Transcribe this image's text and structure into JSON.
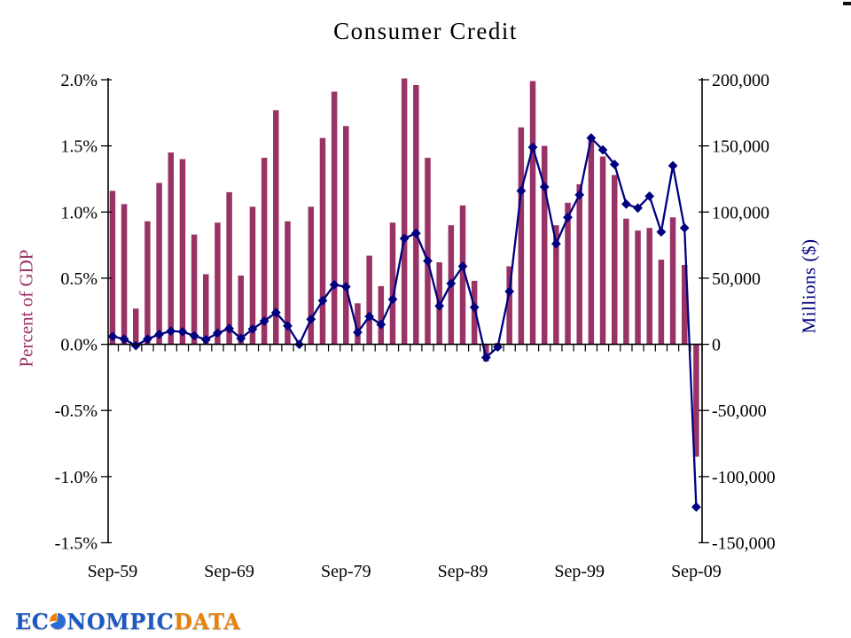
{
  "chart_data": {
    "type": "bar+line",
    "title": "Consumer Credit",
    "grid": false,
    "legend": false,
    "x_axis": {
      "tick_labels": [
        "Sep-59",
        "Sep-69",
        "Sep-79",
        "Sep-89",
        "Sep-99",
        "Sep-09"
      ]
    },
    "categories": [
      "Sep-59",
      "Sep-60",
      "Sep-61",
      "Sep-62",
      "Sep-63",
      "Sep-64",
      "Sep-65",
      "Sep-66",
      "Sep-67",
      "Sep-68",
      "Sep-69",
      "Sep-70",
      "Sep-71",
      "Sep-72",
      "Sep-73",
      "Sep-74",
      "Sep-75",
      "Sep-76",
      "Sep-77",
      "Sep-78",
      "Sep-79",
      "Sep-80",
      "Sep-81",
      "Sep-82",
      "Sep-83",
      "Sep-84",
      "Sep-85",
      "Sep-86",
      "Sep-87",
      "Sep-88",
      "Sep-89",
      "Sep-90",
      "Sep-91",
      "Sep-92",
      "Sep-93",
      "Sep-94",
      "Sep-95",
      "Sep-96",
      "Sep-97",
      "Sep-98",
      "Sep-99",
      "Sep-00",
      "Sep-01",
      "Sep-02",
      "Sep-03",
      "Sep-04",
      "Sep-05",
      "Sep-06",
      "Sep-07",
      "Sep-08",
      "Sep-09"
    ],
    "left_axis": {
      "label": "Percent of GDP",
      "color": "#993366",
      "range": [
        -1.5,
        2.0
      ],
      "tick_labels": [
        "2.0%",
        "1.5%",
        "1.0%",
        "0.5%",
        "0.0%",
        "-0.5%",
        "-1.0%",
        "-1.5%"
      ]
    },
    "right_axis": {
      "label": "Millions ($)",
      "color": "#000080",
      "range": [
        -150000,
        200000
      ],
      "tick_labels": [
        "200,000",
        "150,000",
        "100,000",
        "50,000",
        "0",
        "-50,000",
        "-100,000",
        "-150,000"
      ]
    },
    "series": [
      {
        "name": "Percent of GDP",
        "type": "bar",
        "axis": "left",
        "color": "#993366",
        "values": [
          1.16,
          1.06,
          0.27,
          0.93,
          1.22,
          1.45,
          1.4,
          0.83,
          0.53,
          0.92,
          1.15,
          0.52,
          1.04,
          1.41,
          1.77,
          0.93,
          0.02,
          1.04,
          1.56,
          1.91,
          1.65,
          0.31,
          0.67,
          0.44,
          0.92,
          2.01,
          1.96,
          1.41,
          0.62,
          0.9,
          1.05,
          0.48,
          -0.13,
          0.01,
          0.59,
          1.64,
          1.99,
          1.5,
          0.9,
          1.07,
          1.21,
          1.55,
          1.42,
          1.28,
          0.95,
          0.86,
          0.88,
          0.64,
          0.96,
          0.6,
          -0.85
        ]
      },
      {
        "name": "Millions ($)",
        "type": "line",
        "axis": "right",
        "color": "#000080",
        "marker": "diamond",
        "values": [
          6000,
          4000,
          -1000,
          4000,
          7500,
          10000,
          9500,
          6500,
          3500,
          8500,
          12000,
          4500,
          11500,
          17500,
          24000,
          14000,
          0,
          19000,
          33000,
          45000,
          43500,
          9000,
          21000,
          15000,
          34000,
          80000,
          84000,
          63000,
          29000,
          46000,
          59000,
          28000,
          -10000,
          -2000,
          40000,
          116000,
          149000,
          119000,
          76000,
          96000,
          113000,
          156000,
          147000,
          136000,
          106000,
          103000,
          112000,
          85000,
          135000,
          88000,
          -123000
        ]
      }
    ]
  },
  "logo": {
    "text_ec": "EC",
    "text_nompic": "NOMPIC",
    "text_data": "DATA",
    "blue": "#1c59c4",
    "orange": "#e8820c"
  }
}
